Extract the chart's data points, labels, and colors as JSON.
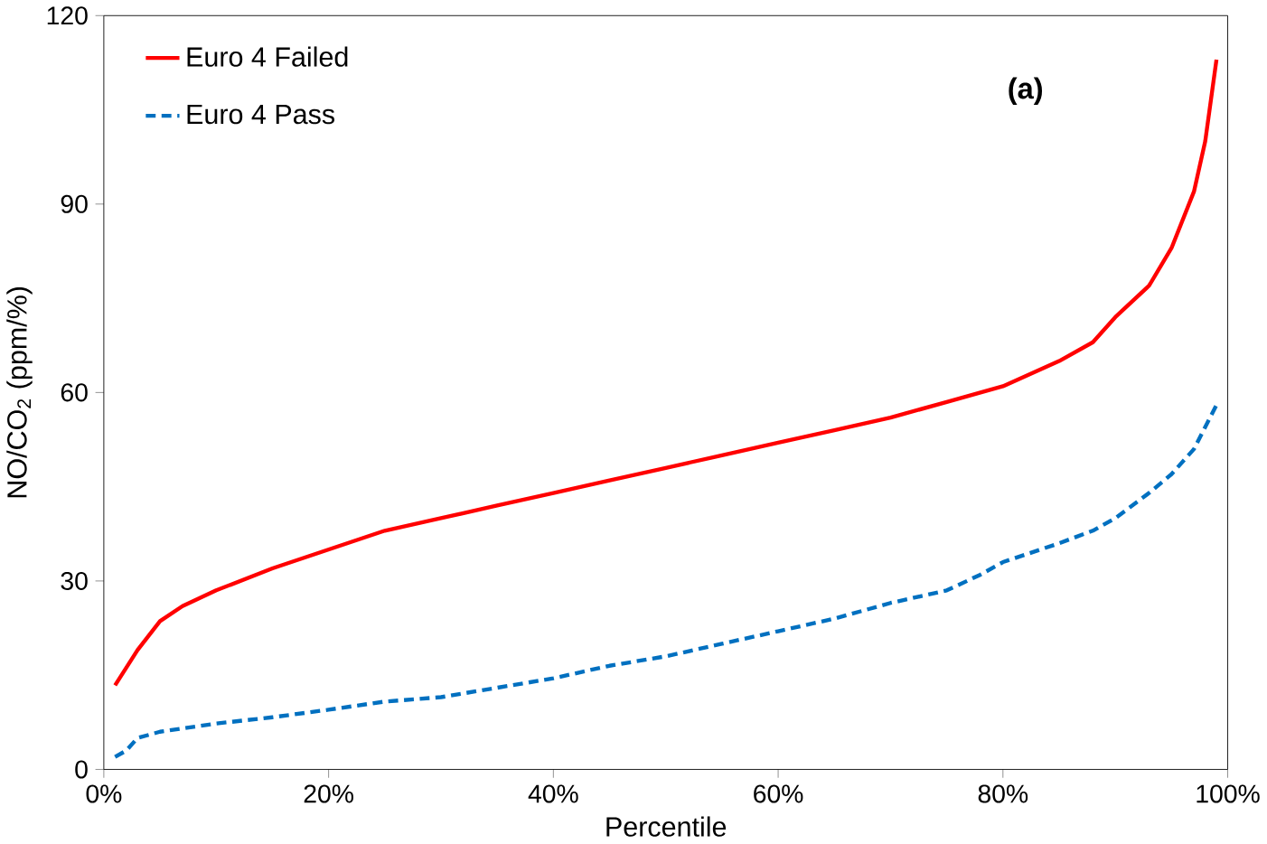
{
  "chart_data": {
    "type": "line",
    "xlabel": "Percentile",
    "ylabel": "NO/CO$_{2}$ (ppm/%)",
    "annotations": [
      "(a)"
    ],
    "xlim": [
      0,
      100
    ],
    "ylim": [
      0,
      120
    ],
    "xticks": [
      {
        "value": 0,
        "label": "0%"
      },
      {
        "value": 20,
        "label": "20%"
      },
      {
        "value": 40,
        "label": "40%"
      },
      {
        "value": 60,
        "label": "60%"
      },
      {
        "value": 80,
        "label": "80%"
      },
      {
        "value": 100,
        "label": "100%"
      }
    ],
    "yticks": [
      0,
      30,
      60,
      90,
      120
    ],
    "grid": false,
    "legend": "top left",
    "marker": "none",
    "series": [
      {
        "name": "Euro 4 Failed",
        "color": "#ff0000",
        "line_style": "solid",
        "x": [
          1,
          3,
          5,
          7,
          10,
          15,
          20,
          25,
          30,
          35,
          40,
          45,
          50,
          55,
          60,
          65,
          70,
          75,
          80,
          85,
          88,
          90,
          93,
          95,
          97,
          98,
          99
        ],
        "values": [
          13.4,
          19,
          23.6,
          26,
          28.5,
          32,
          35,
          38,
          40,
          42,
          44,
          46,
          48,
          50,
          52,
          54,
          56,
          58.5,
          61,
          65,
          68,
          72,
          77,
          83,
          92,
          100,
          113
        ]
      },
      {
        "name": "Euro 4 Pass",
        "color": "#0070c0",
        "line_style": "dashed",
        "x": [
          1,
          2,
          3,
          5,
          10,
          15,
          20,
          25,
          30,
          35,
          40,
          45,
          50,
          55,
          60,
          65,
          70,
          75,
          78,
          80,
          85,
          88,
          90,
          93,
          95,
          97,
          99
        ],
        "values": [
          2,
          3,
          5,
          6,
          7.3,
          8.3,
          9.5,
          10.8,
          11.5,
          13,
          14.5,
          16.5,
          18,
          20,
          22,
          24,
          26.5,
          28.5,
          31,
          33,
          36,
          38,
          40,
          44,
          47,
          51,
          58
        ]
      }
    ]
  }
}
